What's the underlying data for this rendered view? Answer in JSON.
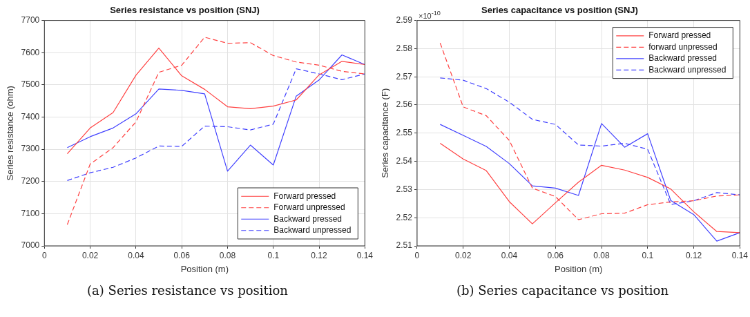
{
  "chart_data": [
    {
      "type": "line",
      "title": "Series resistance vs position (SNJ)",
      "xlabel": "Position (m)",
      "ylabel": "Series resistance (ohm)",
      "x": [
        0.01,
        0.02,
        0.03,
        0.04,
        0.05,
        0.06,
        0.07,
        0.08,
        0.09,
        0.1,
        0.11,
        0.12,
        0.13,
        0.14
      ],
      "series": [
        {
          "name": "Forward pressed",
          "color": "#ff4040",
          "line_style": "solid",
          "values": [
            7286,
            7366,
            7414,
            7530,
            7614,
            7528,
            7486,
            7432,
            7426,
            7434,
            7453,
            7531,
            7573,
            7563
          ]
        },
        {
          "name": "Forward unpressed",
          "color": "#ff4040",
          "line_style": "dashed",
          "values": [
            7066,
            7254,
            7305,
            7385,
            7539,
            7561,
            7648,
            7629,
            7631,
            7591,
            7571,
            7561,
            7542,
            7534
          ]
        },
        {
          "name": "Backward pressed",
          "color": "#4040ff",
          "line_style": "solid",
          "values": [
            7305,
            7339,
            7366,
            7410,
            7487,
            7483,
            7472,
            7232,
            7313,
            7251,
            7465,
            7515,
            7593,
            7563
          ]
        },
        {
          "name": "Backward unpressed",
          "color": "#4040ff",
          "line_style": "dashed",
          "values": [
            7203,
            7227,
            7244,
            7273,
            7310,
            7309,
            7372,
            7370,
            7360,
            7378,
            7550,
            7534,
            7516,
            7534
          ]
        }
      ],
      "xlim": [
        0,
        0.14
      ],
      "xticks": [
        0,
        0.02,
        0.04,
        0.06,
        0.08,
        0.1,
        0.12,
        0.14
      ],
      "ylim": [
        7000,
        7700
      ],
      "yticks": [
        7000,
        7100,
        7200,
        7300,
        7400,
        7500,
        7600,
        7700
      ],
      "grid": true,
      "legend": "bottom right",
      "marker": "none",
      "annotations": [
        "(a) Series resistance vs position"
      ]
    },
    {
      "type": "line",
      "title": "Series capacitance vs position (SNJ)",
      "xlabel": "Position (m)",
      "ylabel": "Series capacitance (F)",
      "x": [
        0.01,
        0.02,
        0.03,
        0.04,
        0.05,
        0.06,
        0.07,
        0.08,
        0.09,
        0.1,
        0.11,
        0.12,
        0.13,
        0.14
      ],
      "series": [
        {
          "name": "Forward pressed",
          "color": "#ff4040",
          "line_style": "solid",
          "values": [
            2.5464,
            2.5408,
            2.5367,
            2.5257,
            2.5178,
            2.5253,
            2.5326,
            2.5386,
            2.5369,
            2.5343,
            2.5302,
            2.5221,
            2.5151,
            2.5147
          ]
        },
        {
          "name": "forward unpressed",
          "color": "#ff4040",
          "line_style": "dashed",
          "values": [
            2.582,
            2.5593,
            2.5562,
            2.5474,
            2.5305,
            2.5275,
            2.5193,
            2.5214,
            2.5216,
            2.5246,
            2.5256,
            2.526,
            2.5277,
            2.5281
          ]
        },
        {
          "name": "Backward pressed",
          "color": "#4040ff",
          "line_style": "solid",
          "values": [
            2.5531,
            2.5492,
            2.5453,
            2.5392,
            2.5313,
            2.5305,
            2.5279,
            2.5534,
            2.545,
            2.5498,
            2.5261,
            2.5211,
            2.5117,
            2.5147
          ]
        },
        {
          "name": "Backward unpressed",
          "color": "#4040ff",
          "line_style": "dashed",
          "values": [
            2.5696,
            2.5688,
            2.5658,
            2.561,
            2.5549,
            2.5531,
            2.5458,
            2.5454,
            2.5464,
            2.5443,
            2.5247,
            2.526,
            2.5289,
            2.5281
          ]
        }
      ],
      "xlim": [
        0,
        0.14
      ],
      "xticks": [
        0,
        0.02,
        0.04,
        0.06,
        0.08,
        0.1,
        0.12,
        0.14
      ],
      "ylim": [
        2.51,
        2.59
      ],
      "yticks": [
        2.51,
        2.52,
        2.53,
        2.54,
        2.55,
        2.56,
        2.57,
        2.58,
        2.59
      ],
      "grid": true,
      "legend": "top right",
      "marker": "none",
      "annotations": [
        "×10$^{-10}$",
        "(b) Series capacitance vs position"
      ]
    }
  ]
}
